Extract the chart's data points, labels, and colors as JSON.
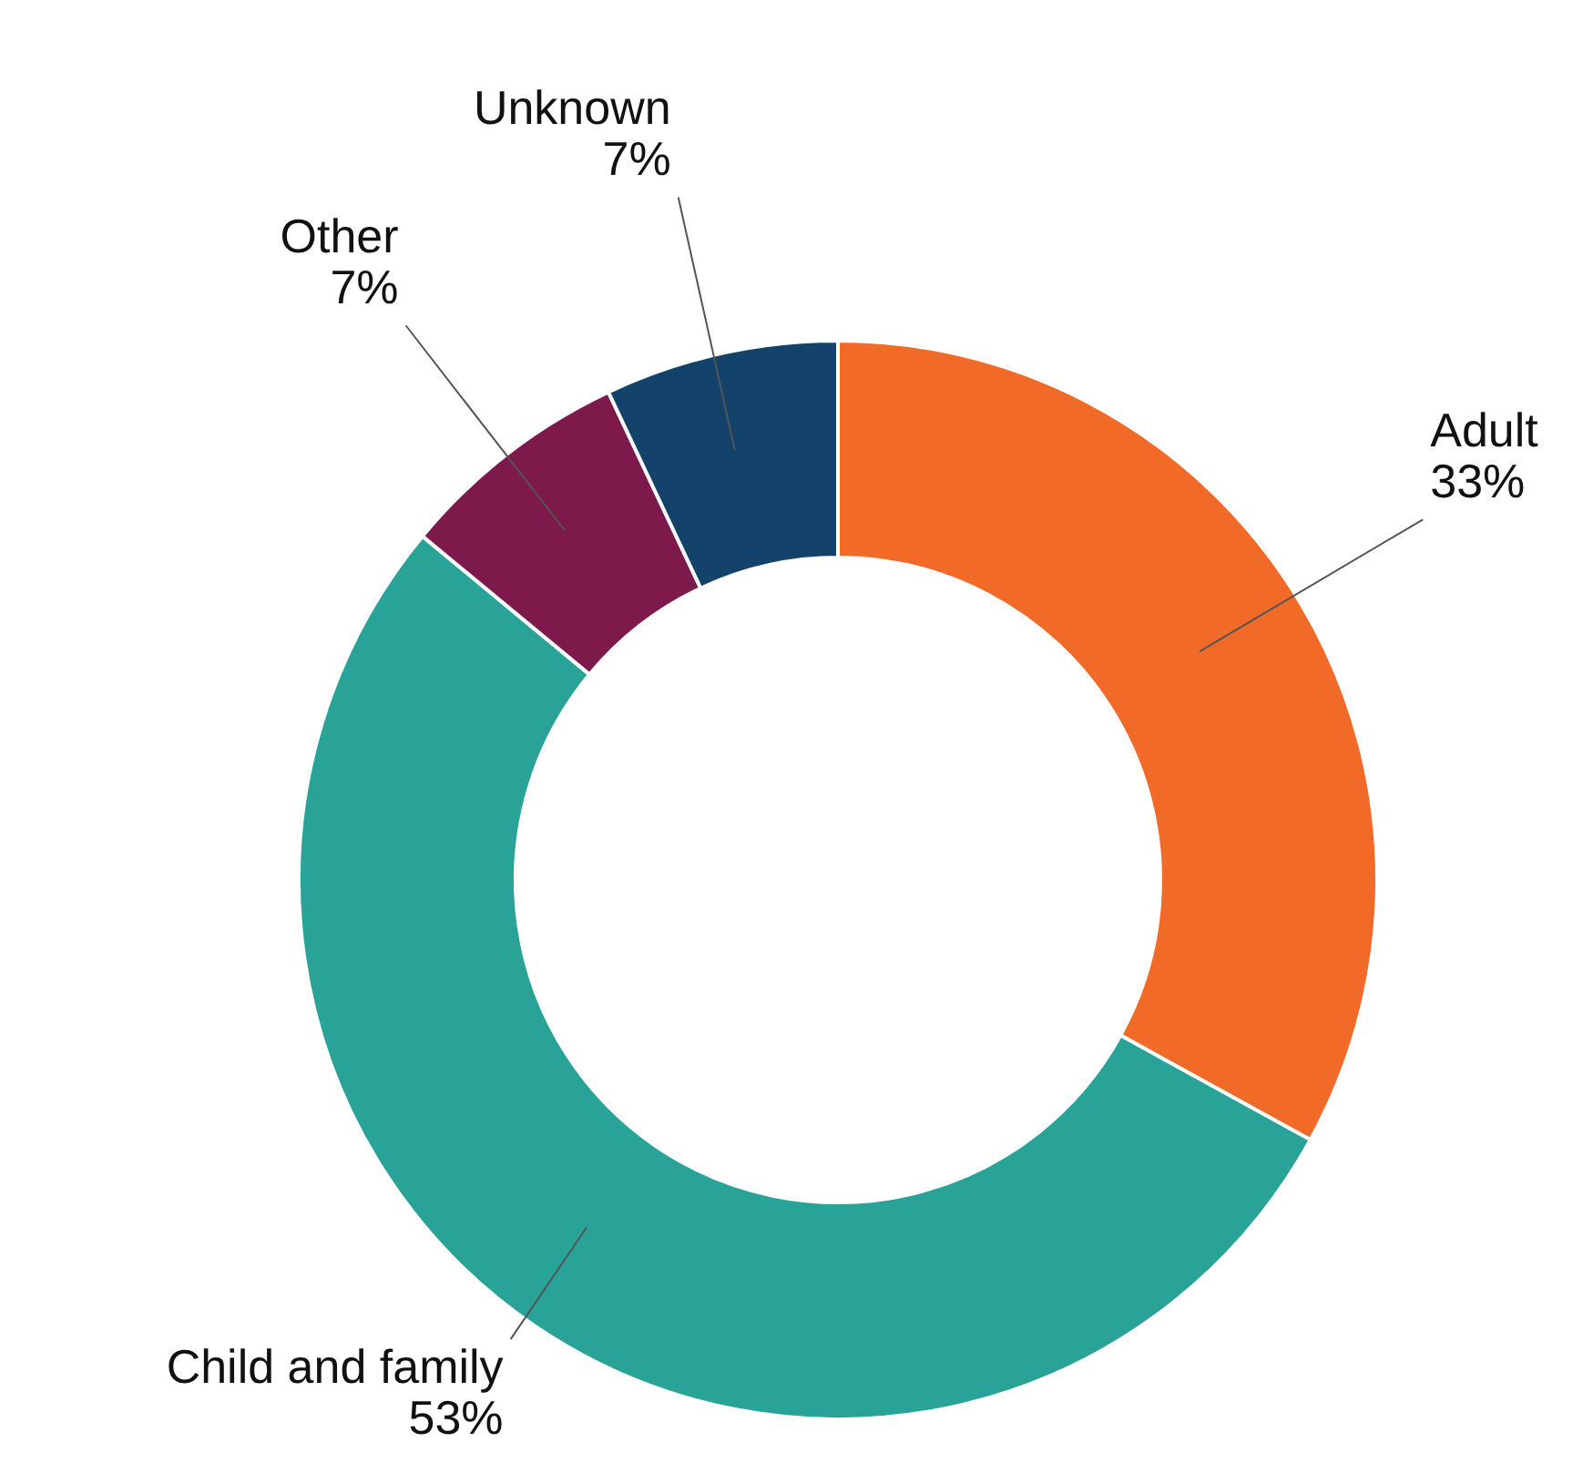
{
  "chart_data": {
    "type": "donut",
    "categories": [
      "Adult",
      "Child and family",
      "Other",
      "Unknown"
    ],
    "values": [
      33,
      53,
      7,
      7
    ],
    "value_labels": [
      "33%",
      "53%",
      "7%",
      "7%"
    ],
    "colors": [
      "#f26a28",
      "#29a398",
      "#7e1a4b",
      "#13426b"
    ]
  }
}
